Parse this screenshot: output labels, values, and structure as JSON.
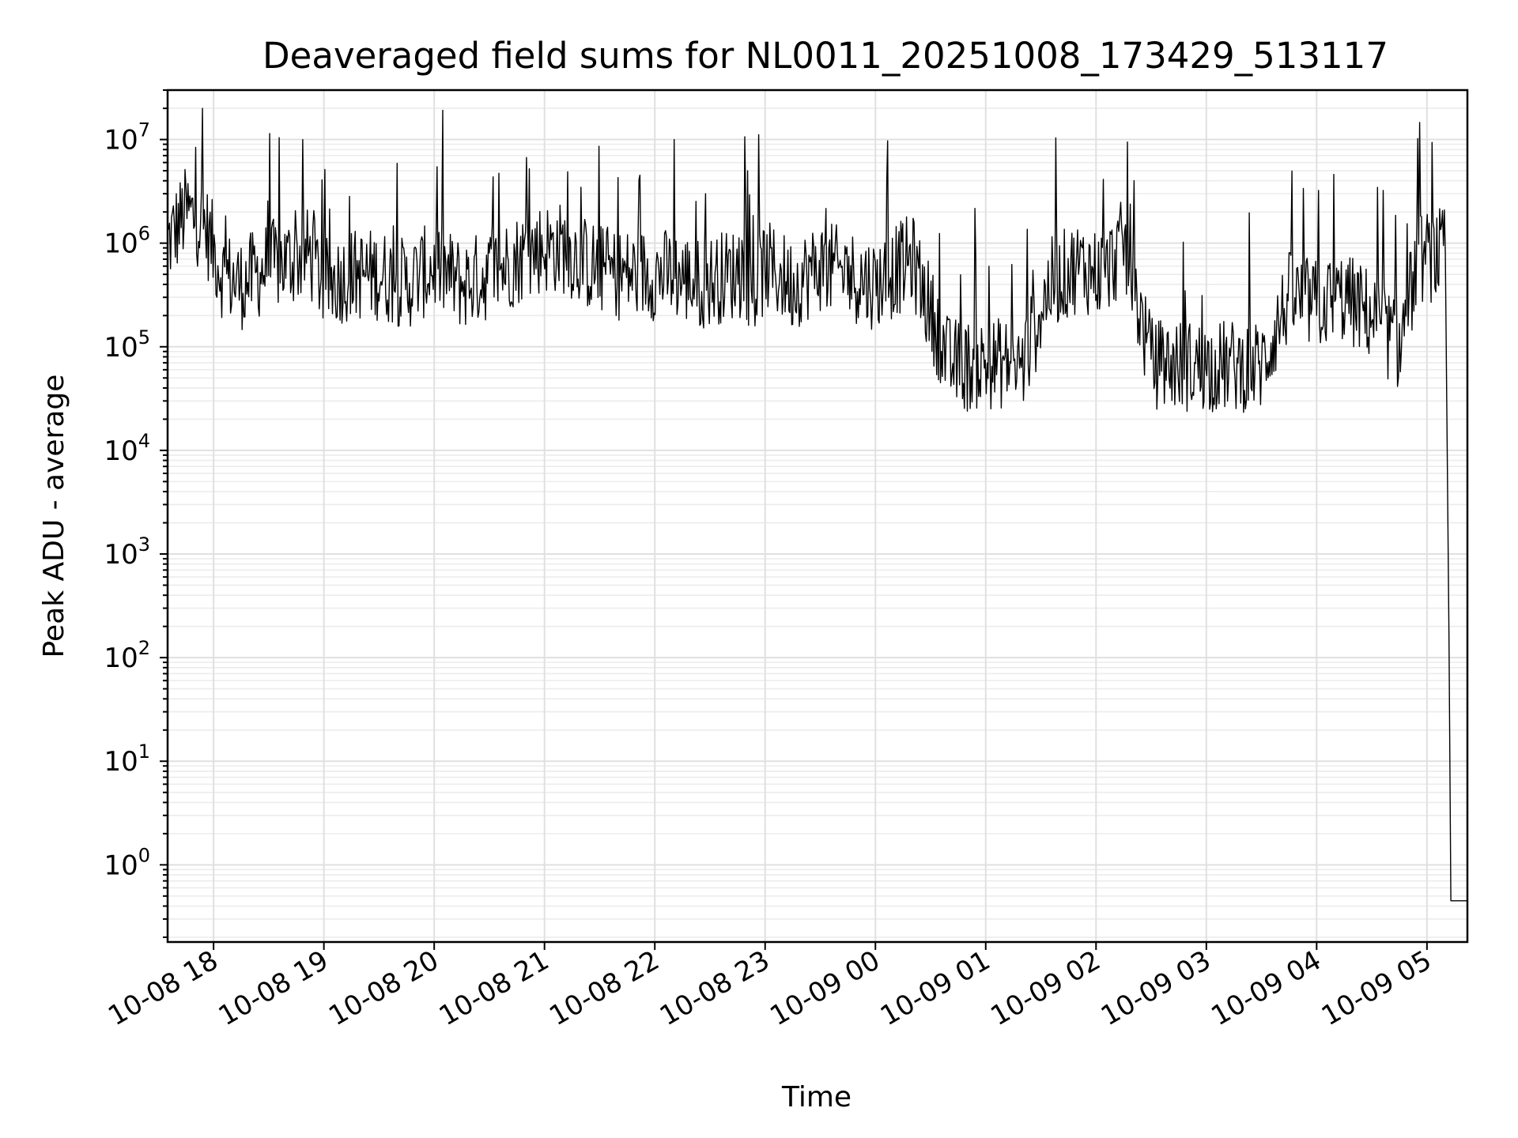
{
  "chart_data": {
    "type": "line",
    "title": "Deaveraged field sums for NL0011_20251008_173429_513117",
    "xlabel": "Time",
    "ylabel": "Peak ADU - average",
    "x_range": [
      "2025-10-08 17:35",
      "2025-10-09 05:22"
    ],
    "y_scale": "log",
    "ylim": [
      0.18,
      30000000
    ],
    "grid": true,
    "grid_minor": true,
    "x_ticks": [
      "10-08 18",
      "10-08 19",
      "10-08 20",
      "10-08 21",
      "10-08 22",
      "10-08 23",
      "10-09 00",
      "10-09 01",
      "10-09 02",
      "10-09 03",
      "10-09 04",
      "10-09 05"
    ],
    "y_ticks": [
      {
        "value": 1,
        "base": "10",
        "exp": "0"
      },
      {
        "value": 10,
        "base": "10",
        "exp": "1"
      },
      {
        "value": 100,
        "base": "10",
        "exp": "2"
      },
      {
        "value": 1000,
        "base": "10",
        "exp": "3"
      },
      {
        "value": 10000,
        "base": "10",
        "exp": "4"
      },
      {
        "value": 100000,
        "base": "10",
        "exp": "5"
      },
      {
        "value": 1000000,
        "base": "10",
        "exp": "6"
      },
      {
        "value": 10000000,
        "base": "10",
        "exp": "7"
      }
    ],
    "line_color": "#000000",
    "series": [
      {
        "x": [
          "2025-10-08 17:35",
          "2025-10-08 17:45",
          "2025-10-08 17:55",
          "2025-10-08 18:05",
          "2025-10-08 18:15",
          "2025-10-08 18:30",
          "2025-10-08 18:45",
          "2025-10-08 18:52",
          "2025-10-08 19:00",
          "2025-10-08 19:15",
          "2025-10-08 19:30",
          "2025-10-08 19:45",
          "2025-10-08 20:00",
          "2025-10-08 20:15",
          "2025-10-08 20:30",
          "2025-10-08 20:45",
          "2025-10-08 20:58",
          "2025-10-08 21:10",
          "2025-10-08 21:25",
          "2025-10-08 21:40",
          "2025-10-08 21:55",
          "2025-10-08 22:10",
          "2025-10-08 22:25",
          "2025-10-08 22:40",
          "2025-10-08 22:50",
          "2025-10-08 22:53",
          "2025-10-08 23:00",
          "2025-10-08 23:15",
          "2025-10-08 23:30",
          "2025-10-08 23:45",
          "2025-10-09 00:00",
          "2025-10-09 00:20",
          "2025-10-09 00:40",
          "2025-10-09 00:50",
          "2025-10-09 01:10",
          "2025-10-09 01:20",
          "2025-10-09 01:35",
          "2025-10-09 01:50",
          "2025-10-09 02:05",
          "2025-10-09 02:15",
          "2025-10-09 02:30",
          "2025-10-09 02:50",
          "2025-10-09 03:10",
          "2025-10-09 03:30",
          "2025-10-09 03:45",
          "2025-10-09 04:00",
          "2025-10-09 04:15",
          "2025-10-09 04:30",
          "2025-10-09 04:45",
          "2025-10-09 04:55",
          "2025-10-09 05:10",
          "2025-10-09 05:12",
          "2025-10-09 05:13",
          "2025-10-09 05:22"
        ],
        "y": [
          1000000,
          2000000,
          1500000,
          500000,
          400000,
          600000,
          700000,
          800000,
          400000,
          500000,
          500000,
          400000,
          600000,
          400000,
          500000,
          700000,
          900000,
          900000,
          600000,
          500000,
          500000,
          500000,
          400000,
          500000,
          500000,
          300000,
          600000,
          400000,
          600000,
          500000,
          400000,
          700000,
          70000,
          65000,
          70000,
          65000,
          400000,
          600000,
          500000,
          1000000,
          70000,
          65000,
          65000,
          65000,
          300000,
          250000,
          300000,
          200000,
          100000,
          700000,
          800000,
          160,
          0.45,
          0.45
        ]
      }
    ]
  }
}
